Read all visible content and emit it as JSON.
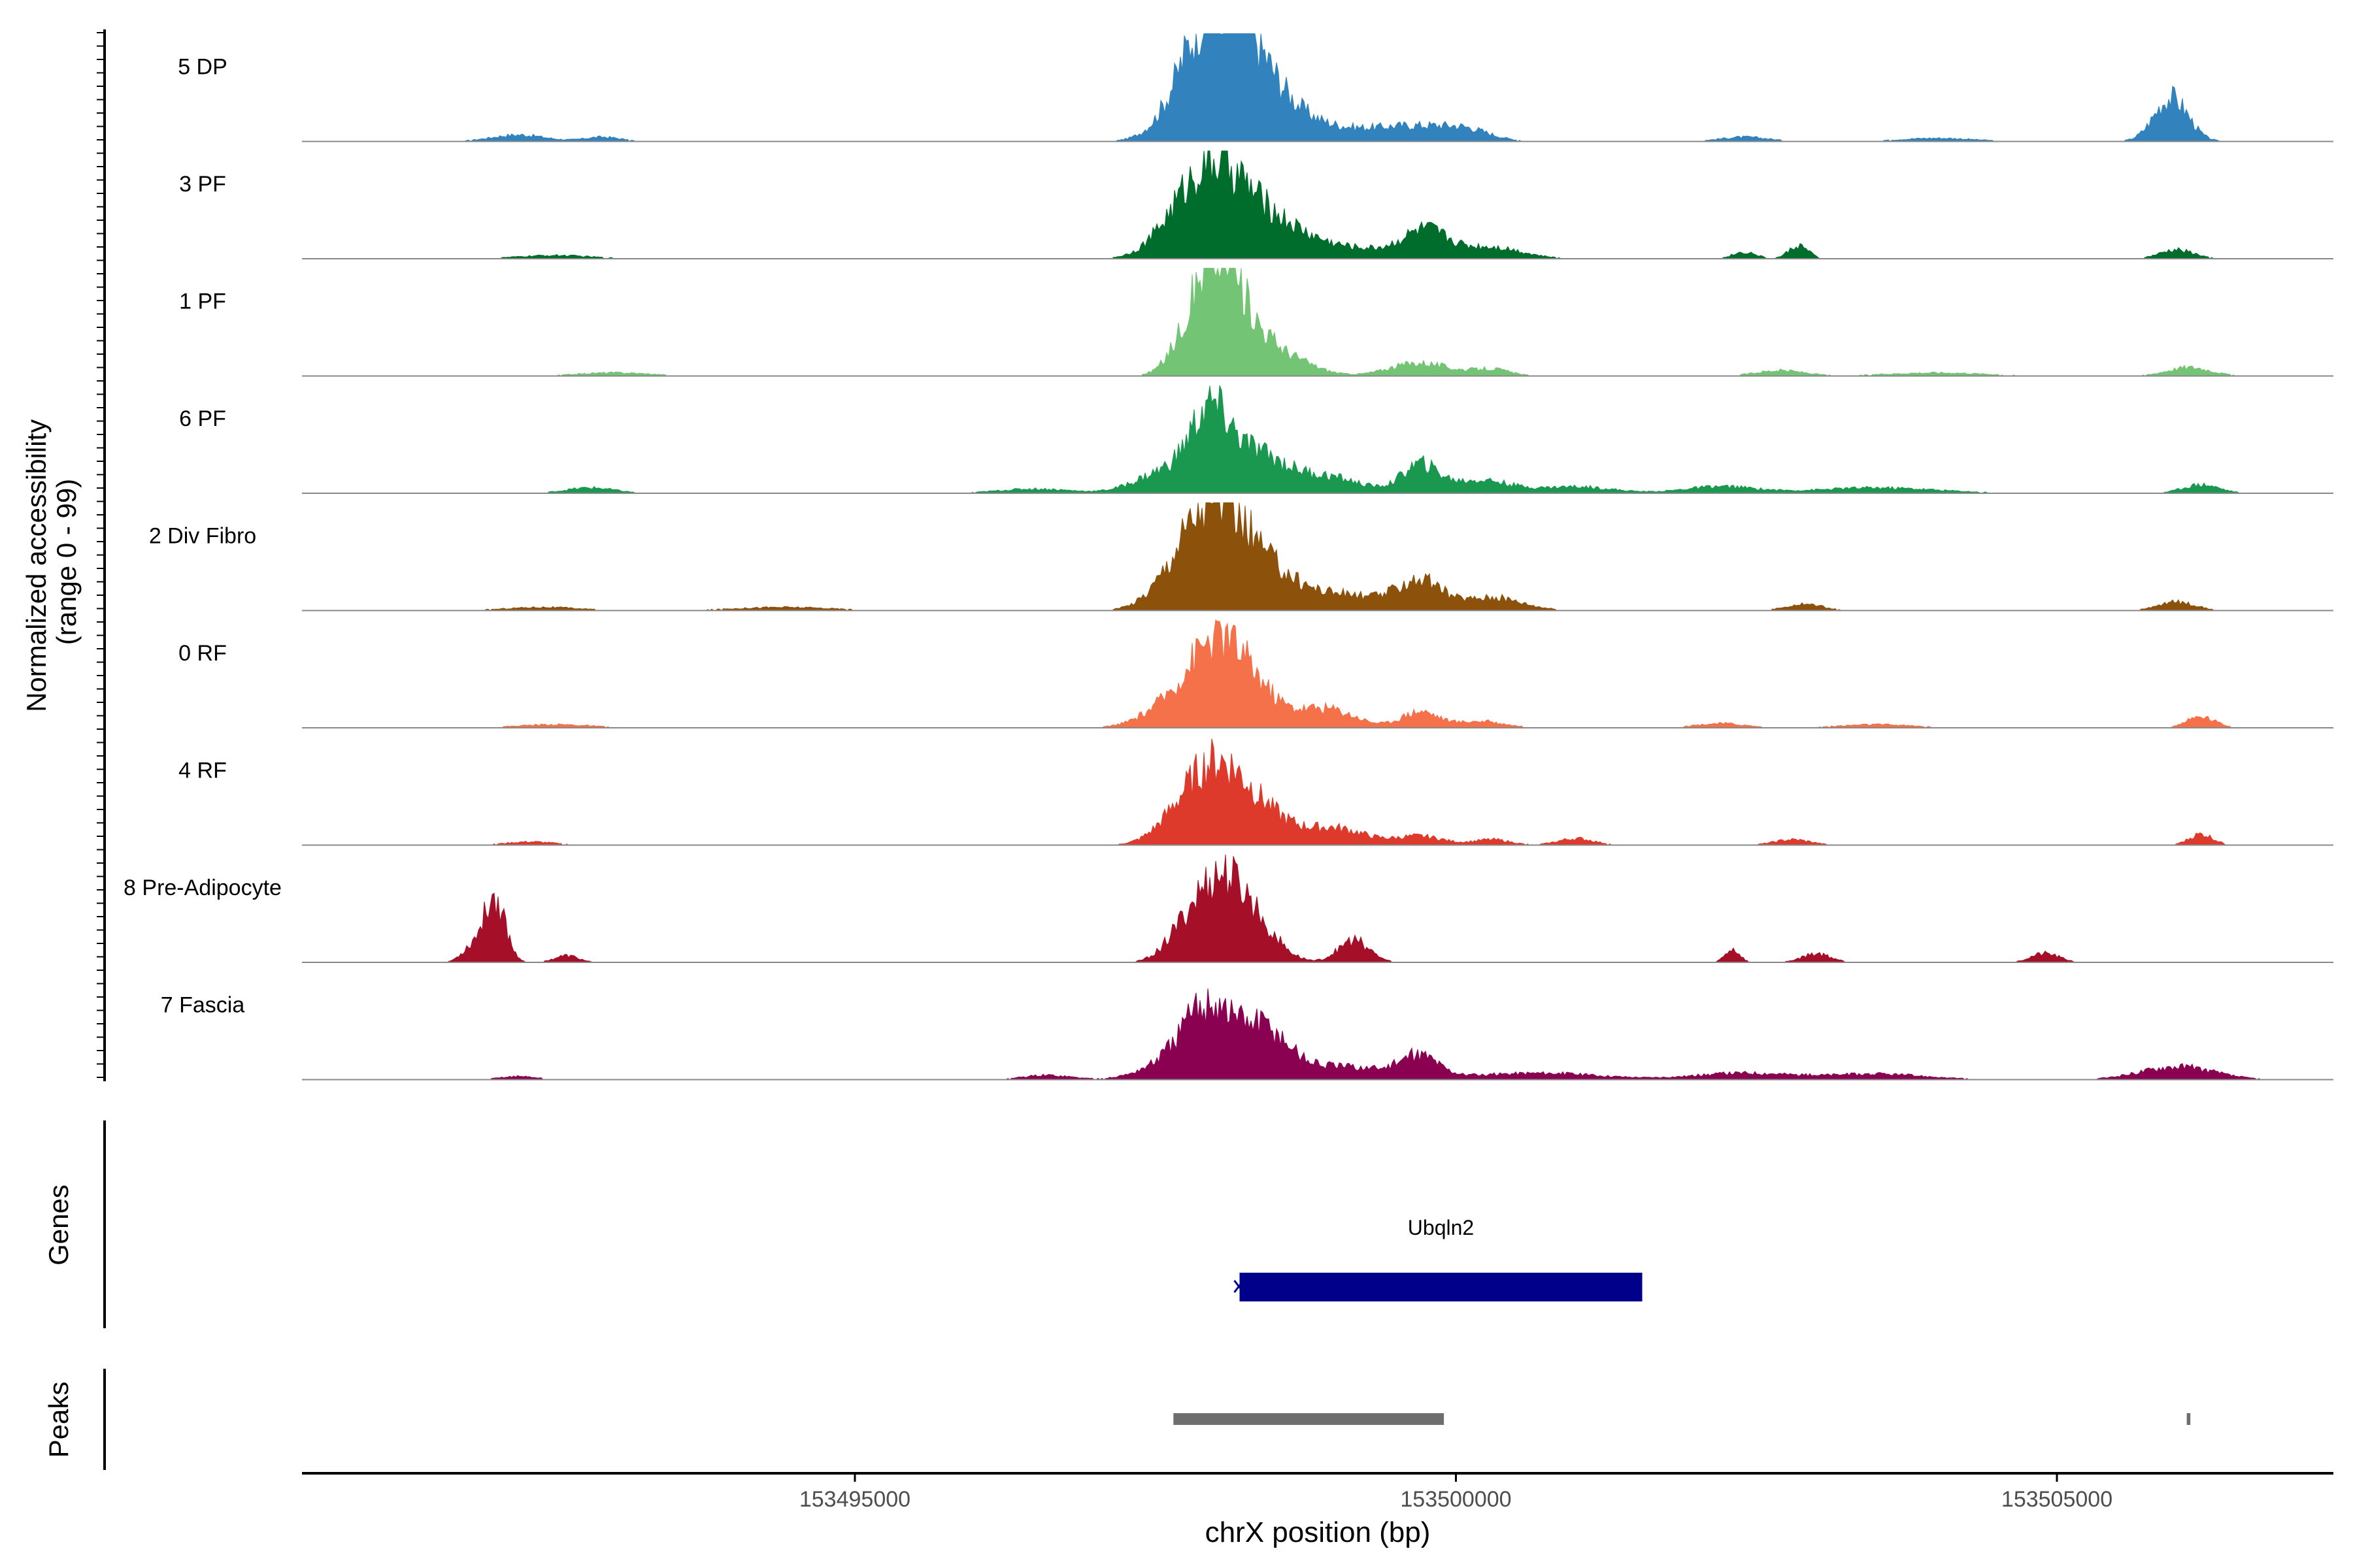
{
  "chart_data": {
    "type": "area",
    "region": "chrX",
    "xlabel": "chrX position (bp)",
    "xlim": [
      153490400,
      153507300
    ],
    "xticks": [
      153495000,
      153500000,
      153505000
    ],
    "xtick_labels": [
      "153495000",
      "153500000",
      "153505000"
    ],
    "coverage_ylabel_line1": "Normalized accessibility",
    "coverage_ylabel_line2": "(range 0 - 99)",
    "ylim": [
      0,
      99
    ],
    "genes_label": "Genes",
    "peaks_label": "Peaks",
    "tracks": [
      {
        "name": "5 DP",
        "color": "#3182BD",
        "peaks": [
          [
            153498050,
            85,
            280
          ],
          [
            153497850,
            30,
            220
          ],
          [
            153498250,
            30,
            280
          ],
          [
            153498550,
            12,
            300
          ],
          [
            153499000,
            10,
            500
          ],
          [
            153499700,
            10,
            300
          ],
          [
            153500100,
            8,
            200
          ],
          [
            153492200,
            6,
            220
          ],
          [
            153492900,
            4,
            150
          ],
          [
            153505950,
            40,
            140
          ],
          [
            153502400,
            4,
            200
          ],
          [
            153504000,
            3,
            300
          ]
        ]
      },
      {
        "name": "3 PF",
        "color": "#006D2C",
        "peaks": [
          [
            153498000,
            65,
            240
          ],
          [
            153497700,
            25,
            220
          ],
          [
            153498400,
            30,
            300
          ],
          [
            153499000,
            10,
            600
          ],
          [
            153499750,
            22,
            180
          ],
          [
            153500300,
            10,
            250
          ],
          [
            153502850,
            12,
            80
          ],
          [
            153502400,
            6,
            100
          ],
          [
            153506000,
            8,
            140
          ],
          [
            153492500,
            3,
            300
          ]
        ]
      },
      {
        "name": "1 PF",
        "color": "#74C476",
        "peaks": [
          [
            153498000,
            85,
            180
          ],
          [
            153497750,
            18,
            150
          ],
          [
            153498250,
            40,
            250
          ],
          [
            153498700,
            8,
            200
          ],
          [
            153499700,
            12,
            250
          ],
          [
            153500300,
            6,
            150
          ],
          [
            153502700,
            5,
            200
          ],
          [
            153506100,
            8,
            180
          ],
          [
            153493000,
            3,
            300
          ],
          [
            153504000,
            3,
            400
          ]
        ]
      },
      {
        "name": "6 PF",
        "color": "#1A9850",
        "peaks": [
          [
            153497950,
            60,
            160
          ],
          [
            153497600,
            20,
            250
          ],
          [
            153498300,
            35,
            250
          ],
          [
            153498900,
            15,
            300
          ],
          [
            153499700,
            25,
            150
          ],
          [
            153500200,
            12,
            250
          ],
          [
            153501000,
            6,
            300
          ],
          [
            153502200,
            6,
            300
          ],
          [
            153503500,
            5,
            500
          ],
          [
            153506200,
            8,
            150
          ],
          [
            153492800,
            5,
            200
          ],
          [
            153496500,
            4,
            300
          ]
        ]
      },
      {
        "name": "2 Div Fibro",
        "color": "#8C510A",
        "peaks": [
          [
            153498000,
            85,
            240
          ],
          [
            153497700,
            25,
            220
          ],
          [
            153498400,
            30,
            250
          ],
          [
            153499000,
            15,
            400
          ],
          [
            153499700,
            25,
            180
          ],
          [
            153500300,
            12,
            250
          ],
          [
            153502900,
            6,
            150
          ],
          [
            153506000,
            8,
            150
          ],
          [
            153492400,
            3,
            300
          ],
          [
            153494400,
            3,
            400
          ]
        ]
      },
      {
        "name": "0 RF",
        "color": "#F4714A",
        "peaks": [
          [
            153498000,
            60,
            200
          ],
          [
            153497700,
            25,
            250
          ],
          [
            153498300,
            35,
            200
          ],
          [
            153498900,
            18,
            250
          ],
          [
            153499700,
            15,
            150
          ],
          [
            153500200,
            6,
            200
          ],
          [
            153502200,
            4,
            200
          ],
          [
            153503500,
            3,
            300
          ],
          [
            153506200,
            10,
            120
          ],
          [
            153492500,
            3,
            300
          ]
        ]
      },
      {
        "name": "4 RF",
        "color": "#DE3A2B",
        "peaks": [
          [
            153498000,
            60,
            220
          ],
          [
            153497700,
            20,
            200
          ],
          [
            153498350,
            30,
            250
          ],
          [
            153499000,
            15,
            250
          ],
          [
            153499700,
            8,
            200
          ],
          [
            153500300,
            5,
            150
          ],
          [
            153501000,
            6,
            150
          ],
          [
            153502800,
            5,
            150
          ],
          [
            153506200,
            10,
            100
          ],
          [
            153492300,
            3,
            200
          ]
        ]
      },
      {
        "name": "8 Pre-Adipocyte",
        "color": "#A50F27",
        "peaks": [
          [
            153492000,
            60,
            90
          ],
          [
            153491800,
            12,
            80
          ],
          [
            153498000,
            65,
            200
          ],
          [
            153497700,
            15,
            150
          ],
          [
            153498300,
            35,
            200
          ],
          [
            153499150,
            20,
            130
          ],
          [
            153502300,
            12,
            60
          ],
          [
            153503000,
            8,
            120
          ],
          [
            153504900,
            8,
            120
          ],
          [
            153492600,
            6,
            100
          ]
        ]
      },
      {
        "name": "7 Fascia",
        "color": "#8B0151",
        "peaks": [
          [
            153497950,
            60,
            200
          ],
          [
            153497650,
            15,
            250
          ],
          [
            153498400,
            40,
            200
          ],
          [
            153499000,
            12,
            500
          ],
          [
            153499700,
            18,
            150
          ],
          [
            153500700,
            6,
            500
          ],
          [
            153502400,
            6,
            400
          ],
          [
            153503500,
            5,
            400
          ],
          [
            153506000,
            12,
            300
          ],
          [
            153492200,
            3,
            150
          ],
          [
            153496600,
            4,
            200
          ]
        ]
      }
    ],
    "genes": [
      {
        "name": "Ubqln2",
        "start": 153498200,
        "end": 153501550,
        "strand": "+",
        "color": "#00008B"
      }
    ],
    "peaks_track": [
      [
        153497650,
        153499900
      ],
      [
        153506080,
        153506110
      ]
    ]
  }
}
